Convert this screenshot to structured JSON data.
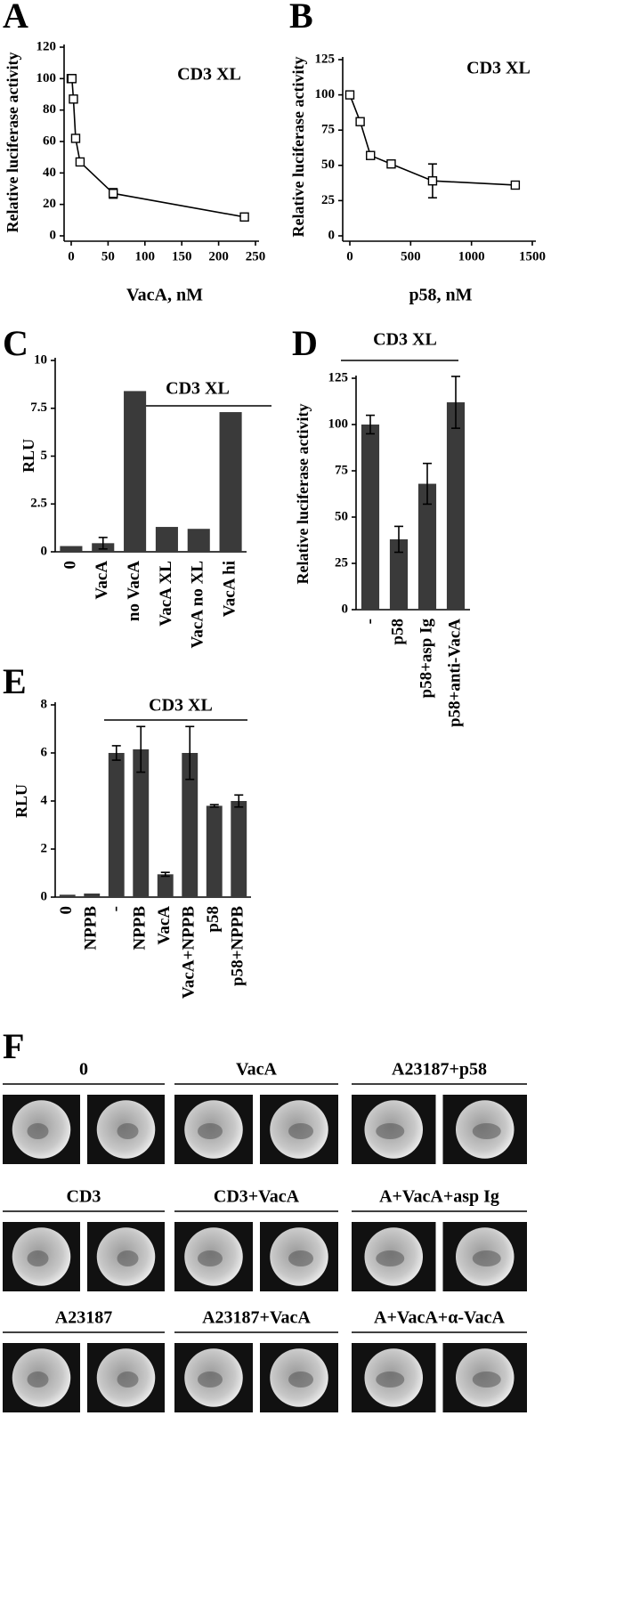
{
  "chart_data": [
    {
      "type": "line",
      "label": "A",
      "annotation": "CD3 XL",
      "y_label": "Relative luciferase activity",
      "x_label": "VacA, nM",
      "x": [
        0,
        1,
        3,
        6,
        12,
        57,
        235
      ],
      "values": [
        100,
        100,
        87,
        62,
        47,
        27,
        12
      ],
      "errors": [
        null,
        null,
        null,
        null,
        null,
        3,
        null
      ],
      "xlim": [
        0,
        250
      ],
      "xticks": [
        0,
        50,
        100,
        150,
        200,
        250
      ],
      "ylim": [
        0,
        120
      ],
      "yticks": [
        0,
        20,
        40,
        60,
        80,
        100,
        120
      ],
      "color": "#000000"
    },
    {
      "type": "line",
      "label": "B",
      "annotation": "CD3 XL",
      "y_label": "Relative luciferase activity",
      "x_label": "p58, nM",
      "x": [
        0,
        85,
        170,
        340,
        680,
        1360
      ],
      "values": [
        100,
        81,
        57,
        51,
        39,
        36
      ],
      "errors": [
        null,
        null,
        null,
        null,
        12,
        null
      ],
      "xlim": [
        0,
        1500
      ],
      "xticks": [
        0,
        500,
        1000,
        1500
      ],
      "ylim": [
        0,
        125
      ],
      "yticks": [
        0,
        25,
        50,
        75,
        100,
        125
      ],
      "color": "#000000"
    },
    {
      "type": "bar",
      "label": "C",
      "annotation": "CD3 XL",
      "y_label": "RLU",
      "categories": [
        "0",
        "VacA",
        "no VacA",
        "VacA XL",
        "VacA no XL",
        "VacA hi"
      ],
      "values": [
        0.3,
        0.45,
        8.4,
        1.3,
        1.2,
        7.3
      ],
      "errors": [
        null,
        0.3,
        null,
        null,
        null,
        null
      ],
      "ylim": [
        0,
        10
      ],
      "yticks": [
        0,
        2.5,
        5,
        7.5,
        10
      ],
      "color": "#3a3a3a"
    },
    {
      "type": "bar",
      "label": "D",
      "annotation": "CD3 XL",
      "y_label": "Relative luciferase activity",
      "categories": [
        "-",
        "p58",
        "p58+asp Ig",
        "p58+anti-VacA"
      ],
      "values": [
        100,
        38,
        68,
        112
      ],
      "errors": [
        5,
        7,
        11,
        14
      ],
      "ylim": [
        0,
        125
      ],
      "yticks": [
        0,
        25,
        50,
        75,
        100,
        125
      ],
      "color": "#3a3a3a"
    },
    {
      "type": "bar",
      "label": "E",
      "annotation": "CD3 XL",
      "y_label": "RLU",
      "categories": [
        "0",
        "NPPB",
        "-",
        "NPPB",
        "VacA",
        "VacA+NPPB",
        "p58",
        "p58+NPPB"
      ],
      "values": [
        0.1,
        0.15,
        6.0,
        6.15,
        0.95,
        6.0,
        3.8,
        4.0
      ],
      "errors": [
        null,
        null,
        0.3,
        0.95,
        0.08,
        1.1,
        0.05,
        0.25
      ],
      "ylim": [
        0,
        8
      ],
      "yticks": [
        0,
        2,
        4,
        6,
        8
      ],
      "color": "#3a3a3a"
    }
  ],
  "panel_f": {
    "label": "F",
    "groups": [
      "0",
      "VacA",
      "A23187+p58",
      "CD3",
      "CD3+VacA",
      "A+VacA+asp Ig",
      "A23187",
      "A23187+VacA",
      "A+VacA+α-VacA"
    ]
  }
}
